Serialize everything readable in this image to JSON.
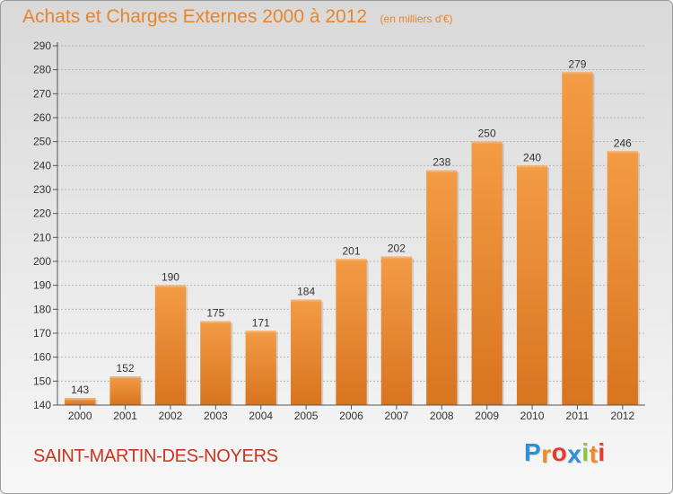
{
  "chart_data": {
    "type": "bar",
    "title": "Achats et Charges Externes 2000 à 2012",
    "subtitle": "(en milliers d'€)",
    "categories": [
      "2000",
      "2001",
      "2002",
      "2003",
      "2004",
      "2005",
      "2006",
      "2007",
      "2008",
      "2009",
      "2010",
      "2011",
      "2012"
    ],
    "values": [
      143,
      152,
      190,
      175,
      171,
      184,
      201,
      202,
      238,
      250,
      240,
      279,
      246
    ],
    "ylim": [
      140,
      290
    ],
    "yticks": [
      140,
      150,
      160,
      170,
      180,
      190,
      200,
      210,
      220,
      230,
      240,
      250,
      260,
      270,
      280,
      290
    ],
    "grid": "horizontal dashed",
    "bar_color": "#f39c44",
    "bar_color_dark": "#d9741f"
  },
  "place_name": "SAINT-MARTIN-DES-NOYERS",
  "brand": {
    "text": "Proxiti",
    "letters": [
      {
        "ch": "P",
        "color": "#2f8fd6"
      },
      {
        "ch": "r",
        "color": "#f08a24"
      },
      {
        "ch": "o",
        "color": "#e23b2f"
      },
      {
        "ch": "x",
        "color": "#2f8fd6"
      },
      {
        "ch": "i",
        "color": "#8cc63f"
      },
      {
        "ch": "t",
        "color": "#f08a24"
      },
      {
        "ch": "i",
        "color": "#e23b2f"
      }
    ]
  }
}
